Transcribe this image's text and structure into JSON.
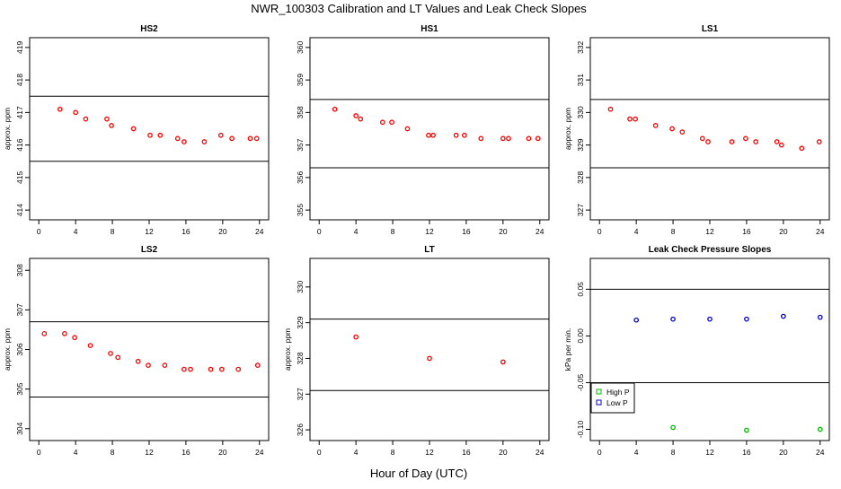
{
  "title": "NWR_100303  Calibration and LT Values and Leak Check Slopes",
  "xlabel": "Hour of Day (UTC)",
  "chart_data": [
    {
      "type": "scatter",
      "title": "HS2",
      "ylabel": "approx. ppm",
      "xlim": [
        -1,
        25
      ],
      "ylim": [
        413.7,
        419.3
      ],
      "xticks": [
        0,
        4,
        8,
        12,
        16,
        20,
        24
      ],
      "yticks": [
        414,
        415,
        416,
        417,
        418,
        419
      ],
      "hlines": [
        417.5,
        415.5
      ],
      "series": [
        {
          "color": "#ff0000",
          "values": [
            [
              2.3,
              417.1
            ],
            [
              4.0,
              417.0
            ],
            [
              5.1,
              416.8
            ],
            [
              7.4,
              416.8
            ],
            [
              7.9,
              416.6
            ],
            [
              10.3,
              416.5
            ],
            [
              12.1,
              416.3
            ],
            [
              13.2,
              416.3
            ],
            [
              15.1,
              416.2
            ],
            [
              15.8,
              416.1
            ],
            [
              18.0,
              416.1
            ],
            [
              19.8,
              416.3
            ],
            [
              21.0,
              416.2
            ],
            [
              23.0,
              416.2
            ],
            [
              23.7,
              416.2
            ]
          ]
        }
      ]
    },
    {
      "type": "scatter",
      "title": "HS1",
      "ylabel": "",
      "xlim": [
        -1,
        25
      ],
      "ylim": [
        354.7,
        360.3
      ],
      "xticks": [
        0,
        4,
        8,
        12,
        16,
        20,
        24
      ],
      "yticks": [
        355,
        356,
        357,
        358,
        359,
        360
      ],
      "hlines": [
        358.4,
        356.3
      ],
      "series": [
        {
          "color": "#ff0000",
          "values": [
            [
              1.7,
              358.1
            ],
            [
              4.0,
              357.9
            ],
            [
              4.5,
              357.8
            ],
            [
              6.9,
              357.7
            ],
            [
              7.9,
              357.7
            ],
            [
              9.6,
              357.5
            ],
            [
              11.9,
              357.3
            ],
            [
              12.4,
              357.3
            ],
            [
              14.9,
              357.3
            ],
            [
              15.8,
              357.3
            ],
            [
              17.6,
              357.2
            ],
            [
              20.0,
              357.2
            ],
            [
              20.6,
              357.2
            ],
            [
              22.8,
              357.2
            ],
            [
              23.8,
              357.2
            ]
          ]
        }
      ]
    },
    {
      "type": "scatter",
      "title": "LS1",
      "ylabel": "approx. ppm",
      "xlim": [
        -1,
        25
      ],
      "ylim": [
        326.7,
        332.3
      ],
      "xticks": [
        0,
        4,
        8,
        12,
        16,
        20,
        24
      ],
      "yticks": [
        327,
        328,
        329,
        330,
        331,
        332
      ],
      "hlines": [
        330.4,
        328.3
      ],
      "series": [
        {
          "color": "#ff0000",
          "values": [
            [
              1.2,
              330.1
            ],
            [
              3.3,
              329.8
            ],
            [
              3.9,
              329.8
            ],
            [
              6.1,
              329.6
            ],
            [
              7.9,
              329.5
            ],
            [
              9.0,
              329.4
            ],
            [
              11.2,
              329.2
            ],
            [
              11.8,
              329.1
            ],
            [
              14.4,
              329.1
            ],
            [
              15.9,
              329.2
            ],
            [
              17.0,
              329.1
            ],
            [
              19.3,
              329.1
            ],
            [
              19.8,
              329.0
            ],
            [
              22.0,
              328.9
            ],
            [
              23.9,
              329.1
            ]
          ]
        }
      ]
    },
    {
      "type": "scatter",
      "title": "LS2",
      "ylabel": "approx. ppm",
      "xlim": [
        -1,
        25
      ],
      "ylim": [
        303.7,
        308.3
      ],
      "xticks": [
        0,
        4,
        8,
        12,
        16,
        20,
        24
      ],
      "yticks": [
        304,
        305,
        306,
        307,
        308
      ],
      "hlines": [
        306.7,
        304.8
      ],
      "series": [
        {
          "color": "#ff0000",
          "values": [
            [
              0.6,
              306.4
            ],
            [
              2.8,
              306.4
            ],
            [
              3.9,
              306.3
            ],
            [
              5.6,
              306.1
            ],
            [
              7.8,
              305.9
            ],
            [
              8.6,
              305.8
            ],
            [
              10.8,
              305.7
            ],
            [
              11.9,
              305.6
            ],
            [
              13.7,
              305.6
            ],
            [
              15.8,
              305.5
            ],
            [
              16.5,
              305.5
            ],
            [
              18.7,
              305.5
            ],
            [
              19.9,
              305.5
            ],
            [
              21.7,
              305.5
            ],
            [
              23.8,
              305.6
            ]
          ]
        }
      ]
    },
    {
      "type": "scatter",
      "title": "LT",
      "ylabel": "approx. ppm",
      "xlim": [
        -1,
        25
      ],
      "ylim": [
        325.7,
        330.8
      ],
      "xticks": [
        0,
        4,
        8,
        12,
        16,
        20,
        24
      ],
      "yticks": [
        326,
        327,
        328,
        329,
        330
      ],
      "hlines": [
        329.1,
        327.1
      ],
      "series": [
        {
          "color": "#ff0000",
          "values": [
            [
              4.0,
              328.6
            ],
            [
              12.0,
              328.0
            ],
            [
              20.0,
              327.9
            ]
          ]
        }
      ]
    },
    {
      "type": "scatter",
      "title": "Leak Check Pressure Slopes",
      "ylabel": "kPa per min.",
      "xlim": [
        -1,
        25
      ],
      "ylim": [
        -0.112,
        0.083
      ],
      "xticks": [
        0,
        4,
        8,
        12,
        16,
        20,
        24
      ],
      "yticks": [
        -0.1,
        -0.05,
        0.0,
        0.05
      ],
      "ytick_labels": [
        "-0.10",
        "-0.05",
        "0.00",
        "0.05"
      ],
      "hlines": [
        0.05,
        -0.05
      ],
      "legend": "bottom-left",
      "series": [
        {
          "name": "High P",
          "color": "#00bb00",
          "values": [
            [
              8,
              -0.098
            ],
            [
              16,
              -0.101
            ],
            [
              24,
              -0.1
            ]
          ]
        },
        {
          "name": "Low P",
          "color": "#0000cc",
          "values": [
            [
              4,
              0.017
            ],
            [
              8,
              0.018
            ],
            [
              12,
              0.018
            ],
            [
              16,
              0.018
            ],
            [
              20,
              0.021
            ],
            [
              24,
              0.02
            ]
          ]
        }
      ]
    }
  ]
}
